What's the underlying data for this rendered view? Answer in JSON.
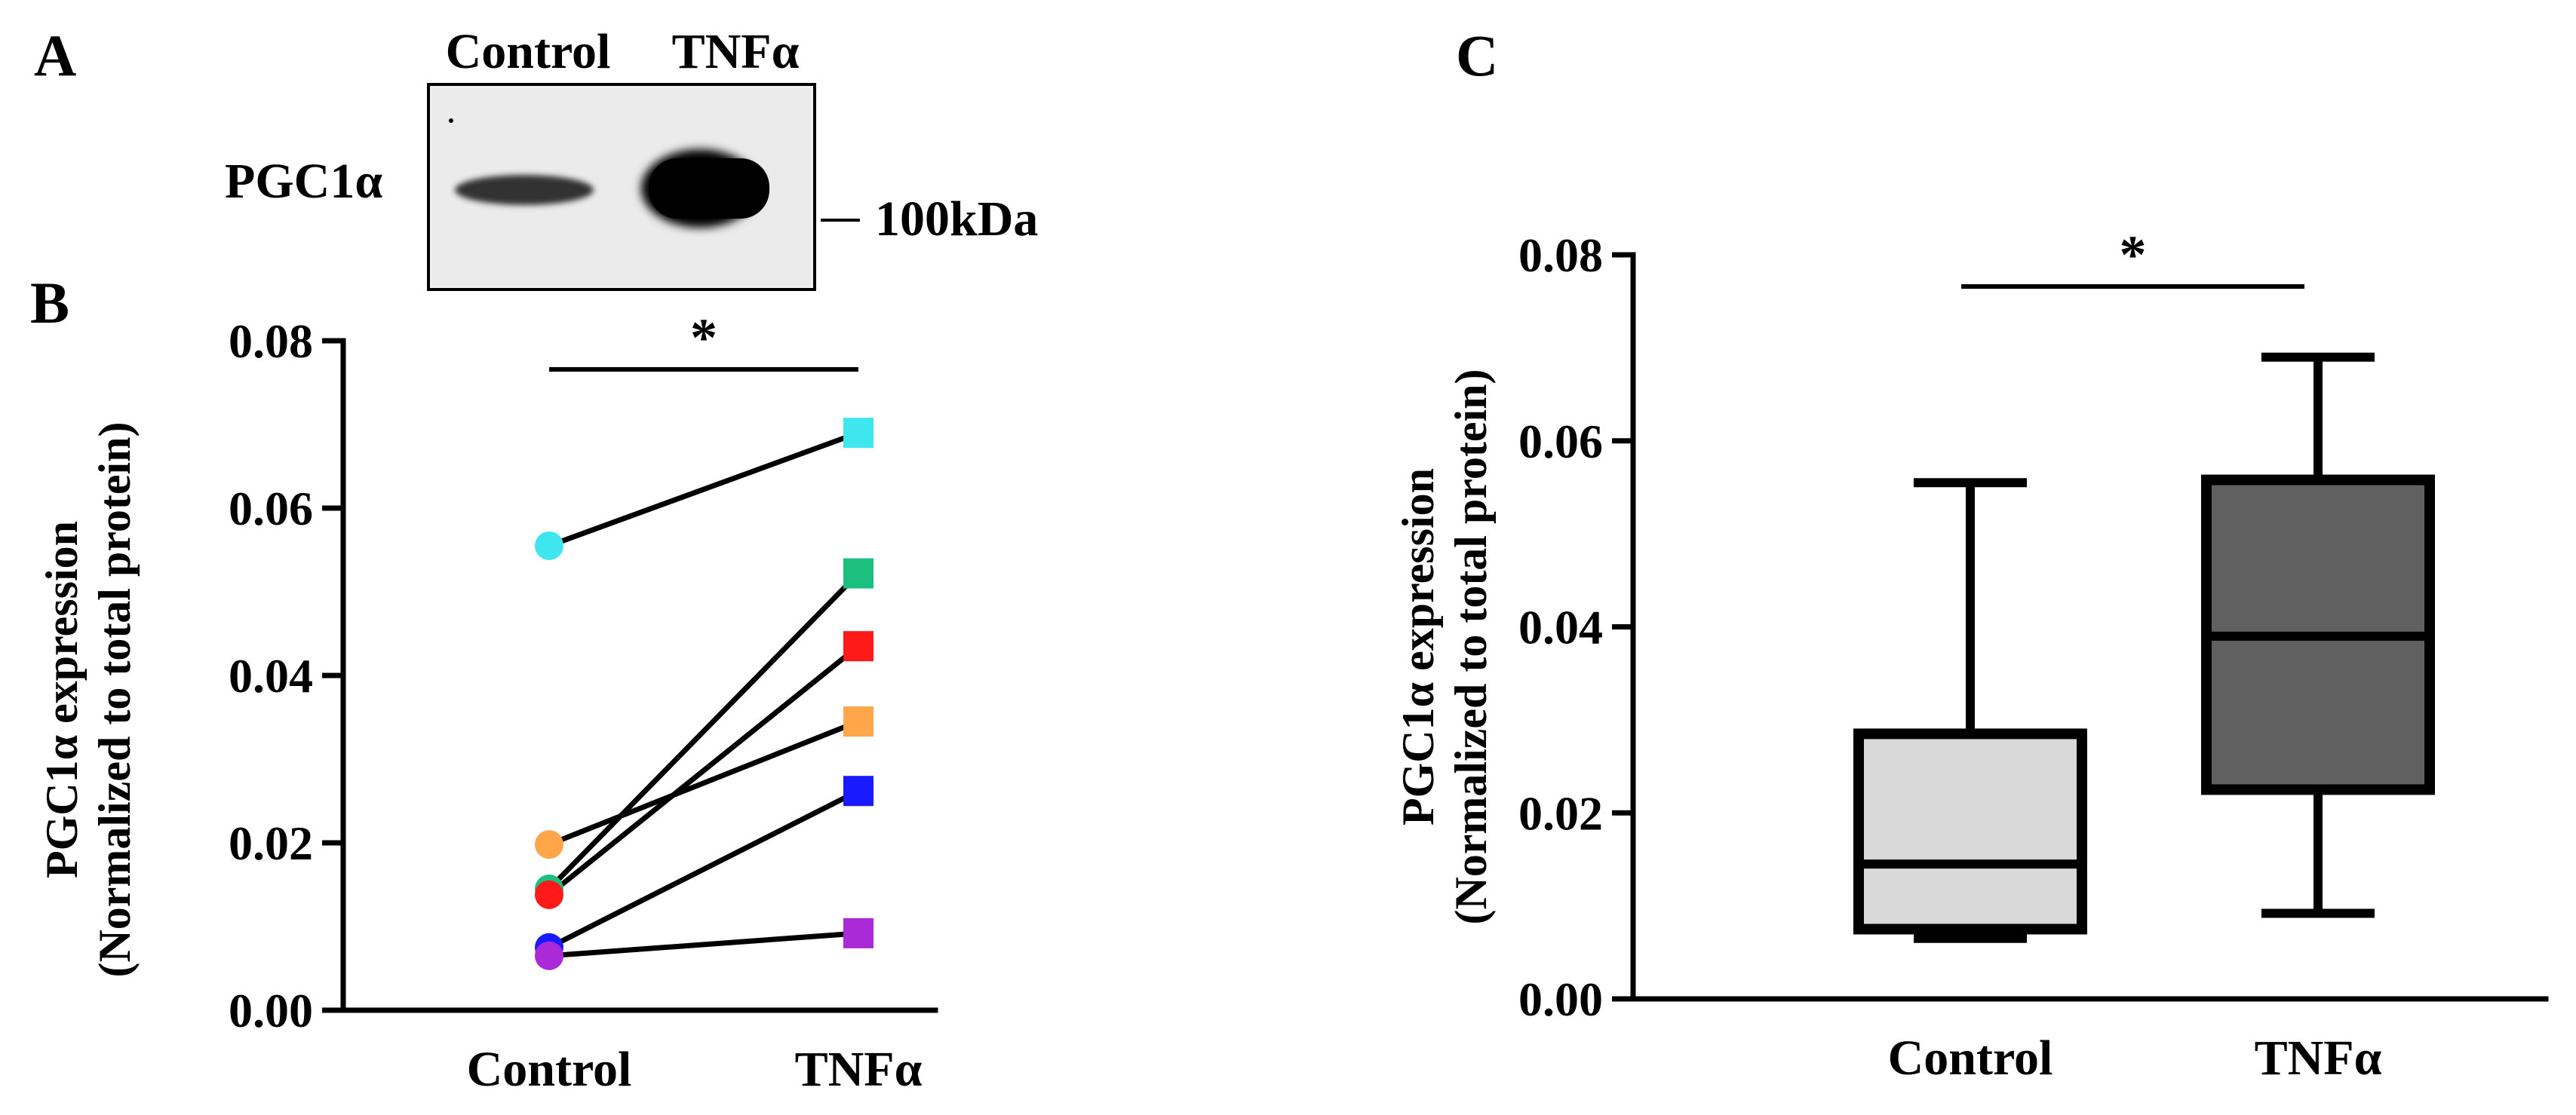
{
  "panels": {
    "a": {
      "letter": "A",
      "lane_labels": [
        "Control",
        "TNFα"
      ],
      "protein_label": "PGC1α",
      "marker_label": "100kDa"
    },
    "b": {
      "letter": "B",
      "significance": "*"
    },
    "c": {
      "letter": "C",
      "significance": "*"
    }
  },
  "colors": {
    "cyan": "#3fe6ee",
    "green": "#1dbf7f",
    "red": "#ff1a1a",
    "orange": "#ffa54a",
    "blue": "#1a1aff",
    "purple": "#aa2ad8",
    "control_box": "#d9d9d9",
    "tnf_box": "#606060",
    "axis": "#000000"
  },
  "chart_data": [
    {
      "panel": "B",
      "type": "scatter",
      "subtype": "paired before-after",
      "categories": [
        "Control",
        "TNFα"
      ],
      "ylabel_lines": [
        "PGC1α expression",
        "(Normalized to total protein)"
      ],
      "ylim": [
        0,
        0.08
      ],
      "yticks": [
        0.0,
        0.02,
        0.04,
        0.06,
        0.08
      ],
      "ytick_labels": [
        "0.00",
        "0.02",
        "0.04",
        "0.06",
        "0.08"
      ],
      "significance": "*",
      "pairs": [
        {
          "color": "cyan",
          "control": 0.0555,
          "tnf": 0.069
        },
        {
          "color": "green",
          "control": 0.0145,
          "tnf": 0.0522
        },
        {
          "color": "red",
          "control": 0.0138,
          "tnf": 0.0435
        },
        {
          "color": "orange",
          "control": 0.0198,
          "tnf": 0.0345
        },
        {
          "color": "blue",
          "control": 0.0075,
          "tnf": 0.0262
        },
        {
          "color": "purple",
          "control": 0.0065,
          "tnf": 0.0092
        }
      ]
    },
    {
      "panel": "C",
      "type": "box",
      "categories": [
        "Control",
        "TNFα"
      ],
      "ylabel_lines": [
        "PGC1α expression",
        "(Normalized to total protein)"
      ],
      "ylim": [
        0,
        0.08
      ],
      "yticks": [
        0.0,
        0.02,
        0.04,
        0.06,
        0.08
      ],
      "ytick_labels": [
        "0.00",
        "0.02",
        "0.04",
        "0.06",
        "0.08"
      ],
      "significance": "*",
      "boxes": [
        {
          "name": "Control",
          "min": 0.0065,
          "q1": 0.0075,
          "median": 0.0145,
          "q3": 0.0285,
          "max": 0.0555,
          "color": "control_box"
        },
        {
          "name": "TNFα",
          "min": 0.0092,
          "q1": 0.0225,
          "median": 0.039,
          "q3": 0.0558,
          "max": 0.069,
          "color": "tnf_box"
        }
      ]
    }
  ]
}
